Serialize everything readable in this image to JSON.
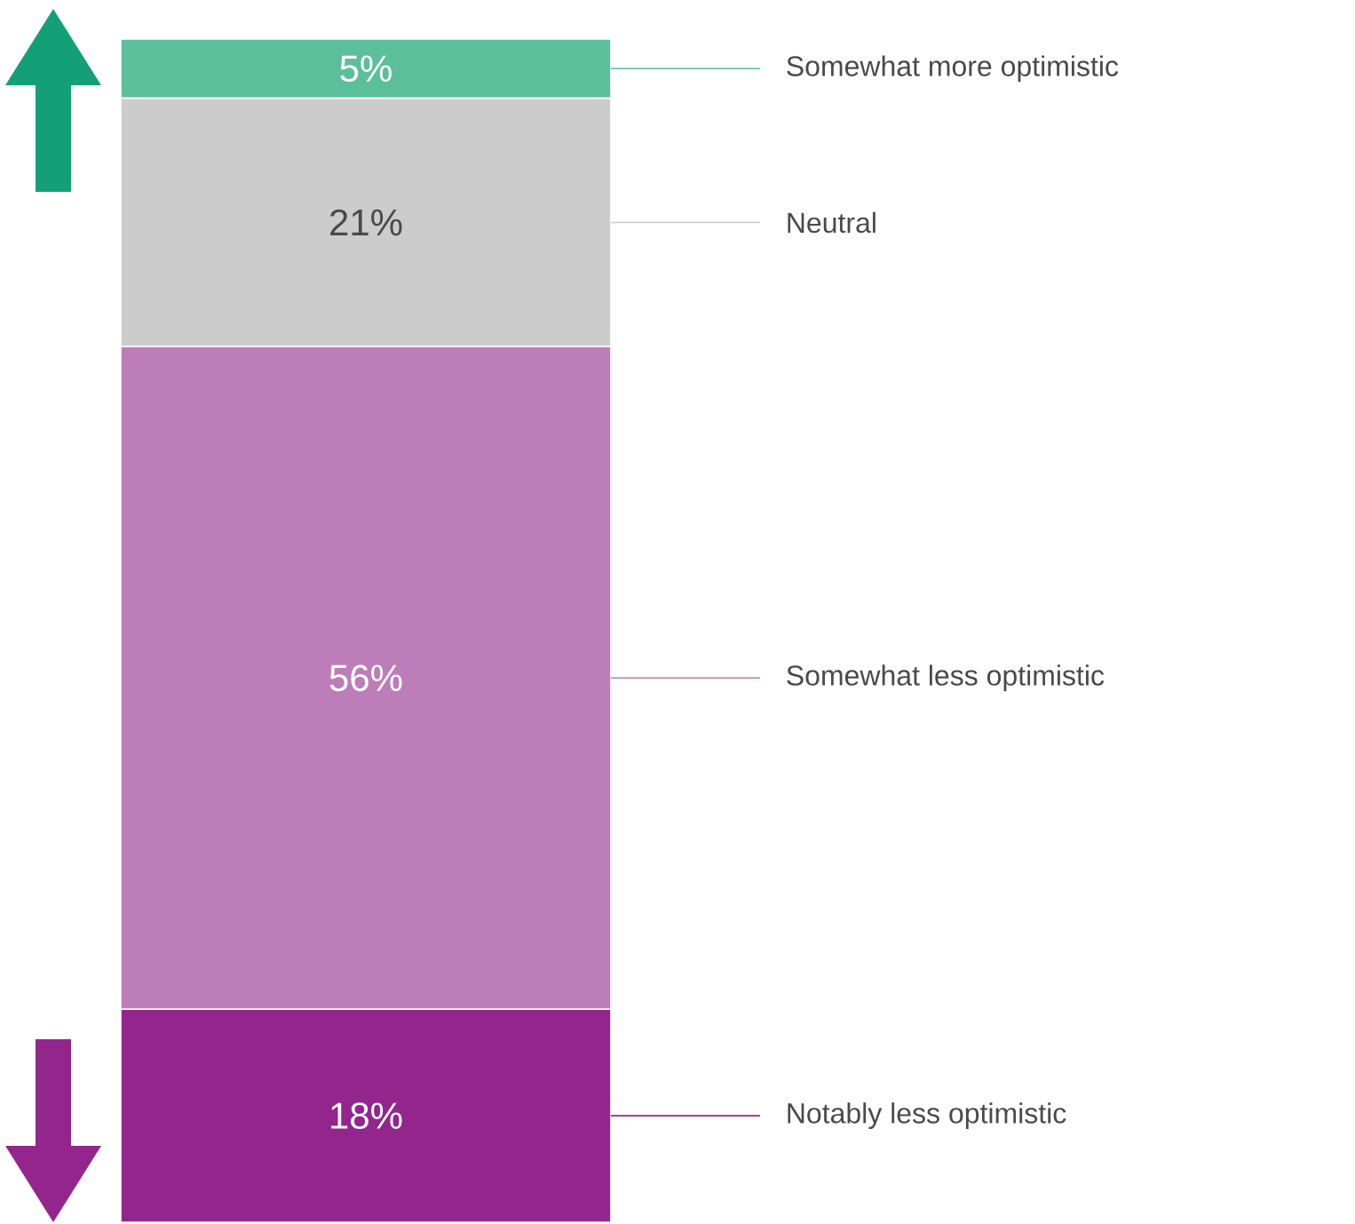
{
  "chart_data": {
    "type": "bar",
    "stacked": true,
    "categories": [
      null
    ],
    "series": [
      {
        "name": "Notably less optimistic",
        "color": "#93268c",
        "values": [
          18
        ],
        "value_labels": [
          "18%"
        ]
      },
      {
        "name": "Somewhat less optimistic",
        "color": "#bd7db9",
        "values": [
          56
        ],
        "value_labels": [
          "56%"
        ]
      },
      {
        "name": "Neutral",
        "color": "#cccccc",
        "values": [
          21
        ],
        "value_labels": [
          "21%"
        ]
      },
      {
        "name": "Somewhat more optimistic",
        "color": "#5bbf9b",
        "values": [
          5
        ],
        "value_labels": [
          "5%"
        ]
      }
    ]
  }
}
